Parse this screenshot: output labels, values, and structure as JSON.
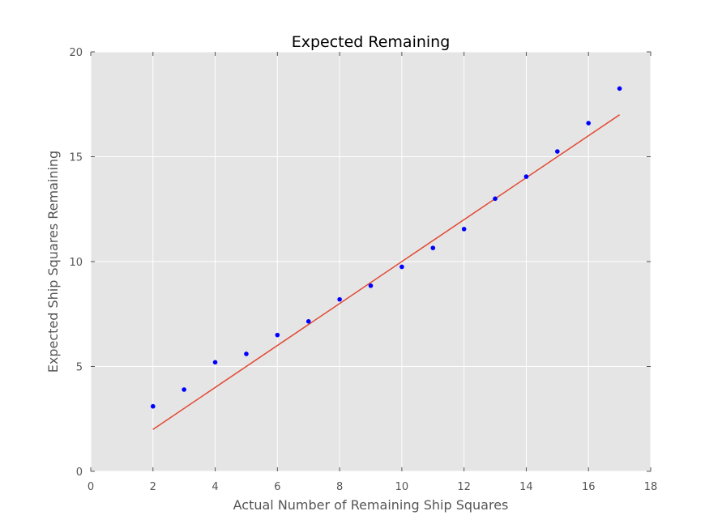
{
  "chart_data": {
    "type": "scatter",
    "title": "Expected Remaining",
    "xlabel": "Actual Number of Remaining Ship Squares",
    "ylabel": "Expected Ship Squares Remaining",
    "xlim": [
      0,
      18
    ],
    "ylim": [
      0,
      20
    ],
    "xticks": [
      0,
      2,
      4,
      6,
      8,
      10,
      12,
      14,
      16,
      18
    ],
    "yticks": [
      0,
      5,
      10,
      15,
      20
    ],
    "grid": true,
    "series": [
      {
        "kind": "scatter",
        "color": "#0000ff",
        "x": [
          2,
          3,
          4,
          5,
          6,
          7,
          8,
          9,
          10,
          11,
          12,
          13,
          14,
          15,
          16,
          17
        ],
        "y": [
          3.1,
          3.9,
          5.2,
          5.6,
          6.5,
          7.15,
          8.2,
          8.85,
          9.75,
          10.65,
          11.55,
          13.0,
          14.05,
          15.25,
          16.6,
          18.25
        ]
      },
      {
        "kind": "line",
        "color": "#e24a33",
        "x": [
          2,
          17
        ],
        "y": [
          2,
          17
        ]
      }
    ]
  }
}
